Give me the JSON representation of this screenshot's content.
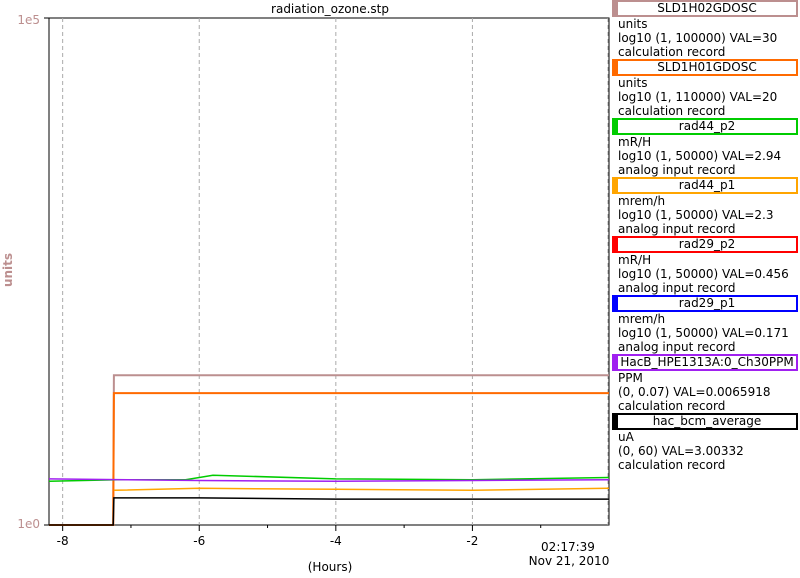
{
  "chart_data": {
    "type": "line",
    "title": "radiation_ozone.stp",
    "xlabel": "(Hours)",
    "ylabel": "units",
    "x_ticks": [
      "-8",
      "-6",
      "-4",
      "-2"
    ],
    "x_end_label": "02:17:39",
    "x_end_date": "Nov 21, 2010",
    "xlim": [
      -8.2,
      0
    ],
    "y_scale": "log",
    "y_ticks": [
      "1e5",
      "1e0"
    ],
    "ylim": [
      1,
      100000
    ],
    "grid": true,
    "series": [
      {
        "name": "SLD1H02GDOSC",
        "color": "#bc8f8f",
        "unit": "units",
        "range": "log10 (1, 100000)",
        "value": "VAL=30",
        "record": "calculation record",
        "x": [
          -8.2,
          -7.26,
          -7.25,
          0
        ],
        "y": [
          1,
          1,
          30,
          30
        ]
      },
      {
        "name": "SLD1H01GDOSC",
        "color": "#ff6a00",
        "unit": "units",
        "range": "log10 (1, 110000)",
        "value": "VAL=20",
        "record": "calculation record",
        "x": [
          -8.2,
          -7.26,
          -7.25,
          0
        ],
        "y": [
          1,
          1,
          20,
          20
        ]
      },
      {
        "name": "rad44_p2",
        "color": "#00cc00",
        "unit": "mR/H",
        "range": "log10 (1, 50000)",
        "value": "VAL=2.94",
        "record": "analog input record",
        "x": [
          -8.2,
          -7.2,
          -6.2,
          -5.8,
          -4.0,
          -2.0,
          0
        ],
        "y": [
          2.7,
          2.8,
          2.8,
          3.1,
          2.85,
          2.8,
          2.94
        ]
      },
      {
        "name": "rad44_p1",
        "color": "#ffa500",
        "unit": "mrem/h",
        "range": "log10 (1, 50000)",
        "value": "VAL=2.3",
        "record": "analog input record",
        "x": [
          -7.25,
          -6.0,
          -4.0,
          -2.0,
          0
        ],
        "y": [
          2.2,
          2.3,
          2.25,
          2.2,
          2.3
        ]
      },
      {
        "name": "rad29_p2",
        "color": "#ff0000",
        "unit": "mR/H",
        "range": "log10 (1, 50000)",
        "value": "VAL=0.456",
        "record": "analog input record",
        "x": [],
        "y": []
      },
      {
        "name": "rad29_p1",
        "color": "#0000ff",
        "unit": "mrem/h",
        "range": "log10 (1, 50000)",
        "value": "VAL=0.171",
        "record": "analog input record",
        "x": [],
        "y": []
      },
      {
        "name": "HacB_HPE1313A:0_Ch30PPM",
        "color": "#a020f0",
        "unit": "PPM",
        "range": "(0, 0.07)",
        "value": "VAL=0.0065918",
        "record": "calculation record",
        "x": [
          -8.2,
          -6.0,
          -4.0,
          -2.0,
          0
        ],
        "y": [
          2.85,
          2.75,
          2.7,
          2.75,
          2.8
        ]
      },
      {
        "name": "hac_bcm_average",
        "color": "#000000",
        "unit": "uA",
        "range": "(0, 60)",
        "value": "VAL=3.00332",
        "record": "calculation record",
        "x": [
          -8.2,
          -7.26,
          -7.25,
          -6.0,
          -4.0,
          -2.0,
          0
        ],
        "y": [
          1,
          1,
          1.85,
          1.85,
          1.8,
          1.8,
          1.8
        ]
      }
    ]
  }
}
